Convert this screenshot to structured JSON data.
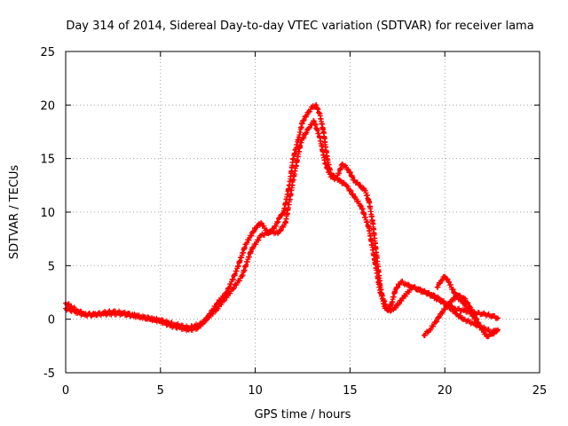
{
  "chart_data": {
    "type": "scatter",
    "title": "Day 314 of 2014, Sidereal Day-to-day VTEC variation (SDTVAR) for receiver lama",
    "xlabel": "GPS time / hours",
    "ylabel": "SDTVAR / TECUs",
    "xlim": [
      0,
      25
    ],
    "ylim": [
      -5,
      25
    ],
    "xticks": [
      "0",
      "5",
      "10",
      "15",
      "20",
      "25"
    ],
    "yticks": [
      "-5",
      "0",
      "5",
      "10",
      "15",
      "20",
      "25"
    ],
    "grid": true,
    "marker": "+",
    "series": [
      {
        "name": "SDTVAR",
        "color": "#ff0000",
        "x": [
          0.0,
          0.3,
          0.6,
          1.0,
          1.5,
          2.0,
          2.5,
          3.0,
          3.5,
          4.0,
          4.5,
          5.0,
          5.5,
          6.0,
          6.5,
          7.0,
          7.5,
          8.0,
          8.5,
          9.0,
          9.5,
          10.0,
          10.3,
          10.7,
          11.0,
          11.3,
          11.5,
          11.8,
          12.0,
          12.3,
          12.5,
          12.8,
          13.0,
          13.2,
          13.4,
          13.6,
          13.8,
          14.0,
          14.3,
          14.6,
          14.9,
          15.2,
          15.5,
          15.8,
          16.0,
          16.2,
          16.4,
          16.6,
          16.8,
          17.0,
          17.2,
          17.4,
          17.7,
          18.0,
          18.3,
          18.6,
          19.0,
          19.5,
          20.0,
          20.5,
          21.0,
          21.5,
          22.0,
          22.5,
          22.8
        ],
        "values": [
          1.5,
          1.2,
          0.8,
          0.5,
          0.4,
          0.6,
          0.7,
          0.6,
          0.4,
          0.2,
          0.0,
          -0.2,
          -0.6,
          -0.8,
          -1.0,
          -0.8,
          0.2,
          1.5,
          2.5,
          4.5,
          7.0,
          8.5,
          9.0,
          8.0,
          8.5,
          9.5,
          10.0,
          12.5,
          15.0,
          17.0,
          18.5,
          19.3,
          19.8,
          20.0,
          19.2,
          17.5,
          15.0,
          13.5,
          13.2,
          14.5,
          14.0,
          13.0,
          12.5,
          12.0,
          11.0,
          9.0,
          6.0,
          3.0,
          1.2,
          0.8,
          1.5,
          2.8,
          3.5,
          3.2,
          3.0,
          2.8,
          2.5,
          2.0,
          1.5,
          1.0,
          0.8,
          0.6,
          0.5,
          0.3,
          0.1
        ]
      },
      {
        "name": "SDTVAR",
        "color": "#ff0000",
        "x": [
          0.0,
          0.5,
          1.0,
          2.0,
          3.0,
          4.0,
          5.0,
          5.8,
          6.5,
          7.2,
          8.0,
          8.8,
          9.3,
          9.8,
          10.3,
          10.8,
          11.2,
          11.6,
          12.0,
          12.4,
          12.8,
          13.1,
          13.4,
          13.7,
          14.0,
          14.4,
          14.8,
          15.2,
          15.6,
          16.0,
          16.3,
          16.6,
          17.0,
          17.3,
          17.8,
          18.3,
          18.8,
          19.3,
          19.8,
          20.2,
          20.6,
          21.0,
          21.5,
          22.0,
          22.5,
          22.8
        ],
        "values": [
          1.0,
          0.7,
          0.4,
          0.5,
          0.5,
          0.2,
          -0.1,
          -0.5,
          -0.8,
          -0.4,
          1.0,
          2.8,
          4.0,
          6.5,
          7.8,
          8.2,
          8.0,
          9.0,
          13.0,
          16.5,
          17.8,
          18.5,
          17.0,
          14.5,
          13.3,
          13.0,
          12.5,
          11.5,
          10.5,
          8.5,
          5.5,
          2.5,
          0.8,
          0.9,
          2.0,
          3.0,
          2.6,
          2.3,
          1.8,
          1.2,
          0.5,
          0.0,
          -0.4,
          -0.8,
          -1.2,
          -1.0
        ]
      },
      {
        "name": "SDTVAR",
        "color": "#ff0000",
        "x": [
          18.9,
          19.2,
          19.5,
          19.8,
          20.1,
          20.4,
          20.7,
          21.0,
          21.3,
          21.6,
          21.9,
          22.2,
          22.5,
          22.8
        ],
        "values": [
          -1.5,
          -1.0,
          -0.3,
          0.5,
          1.2,
          1.8,
          2.2,
          2.0,
          1.2,
          0.2,
          -0.8,
          -1.6,
          -1.4,
          -1.0
        ]
      },
      {
        "name": "SDTVAR",
        "color": "#ff0000",
        "x": [
          19.6,
          19.8,
          20.0,
          20.2,
          20.4,
          20.6,
          20.8,
          21.0,
          21.2,
          21.4,
          21.6
        ],
        "values": [
          3.0,
          3.6,
          4.0,
          3.5,
          2.8,
          2.2,
          1.8,
          1.5,
          1.0,
          0.5,
          0.0
        ]
      }
    ]
  }
}
